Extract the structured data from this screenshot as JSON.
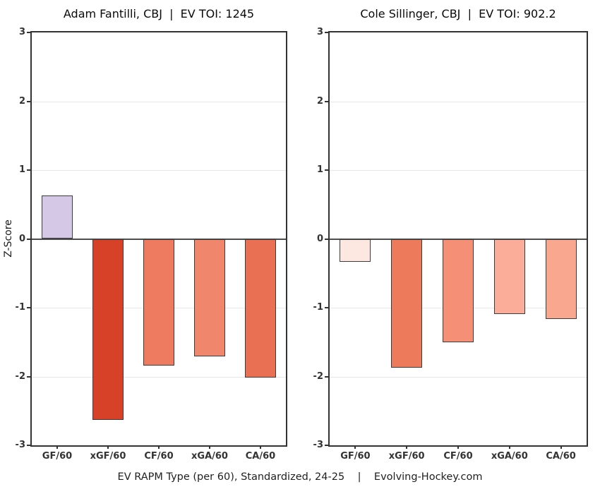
{
  "page": {
    "footer": "EV RAPM Type (per 60), Standardized, 24-25    |    Evolving-Hockey.com"
  },
  "chart_data": [
    {
      "type": "bar",
      "title": "Adam Fantilli, CBJ  |  EV TOI: 1245",
      "categories": [
        "GF/60",
        "xGF/60",
        "CF/60",
        "xGA/60",
        "CA/60"
      ],
      "values": [
        0.63,
        -2.63,
        -1.84,
        -1.71,
        -2.02
      ],
      "bar_colors": [
        "#d4c8e6",
        "#d74128",
        "#ee7b5f",
        "#f0866b",
        "#ea7053"
      ],
      "ylabel": "Z-Score",
      "xlabel": "",
      "ylim": [
        -3,
        3
      ],
      "yticks": [
        3,
        2,
        1,
        0,
        -1,
        -2,
        -3
      ],
      "grid": true,
      "legend": "none"
    },
    {
      "type": "bar",
      "title": "Cole Sillinger, CBJ  |  EV TOI: 902.2",
      "categories": [
        "GF/60",
        "xGF/60",
        "CF/60",
        "xGA/60",
        "CA/60"
      ],
      "values": [
        -0.33,
        -1.87,
        -1.5,
        -1.09,
        -1.16
      ],
      "bar_colors": [
        "#fde7e1",
        "#ee7a5c",
        "#f58f76",
        "#fbad9a",
        "#faa78f"
      ],
      "ylabel": "",
      "xlabel": "",
      "ylim": [
        -3,
        3
      ],
      "yticks": [
        3,
        2,
        1,
        0,
        -1,
        -2,
        -3
      ],
      "grid": true,
      "legend": "none"
    }
  ],
  "style": {
    "bar_border_color": "#3c3c3c",
    "zero_line_color": "#4d4d4d",
    "gridline_color": "#e7e7e7",
    "spine_color": "#333333"
  }
}
